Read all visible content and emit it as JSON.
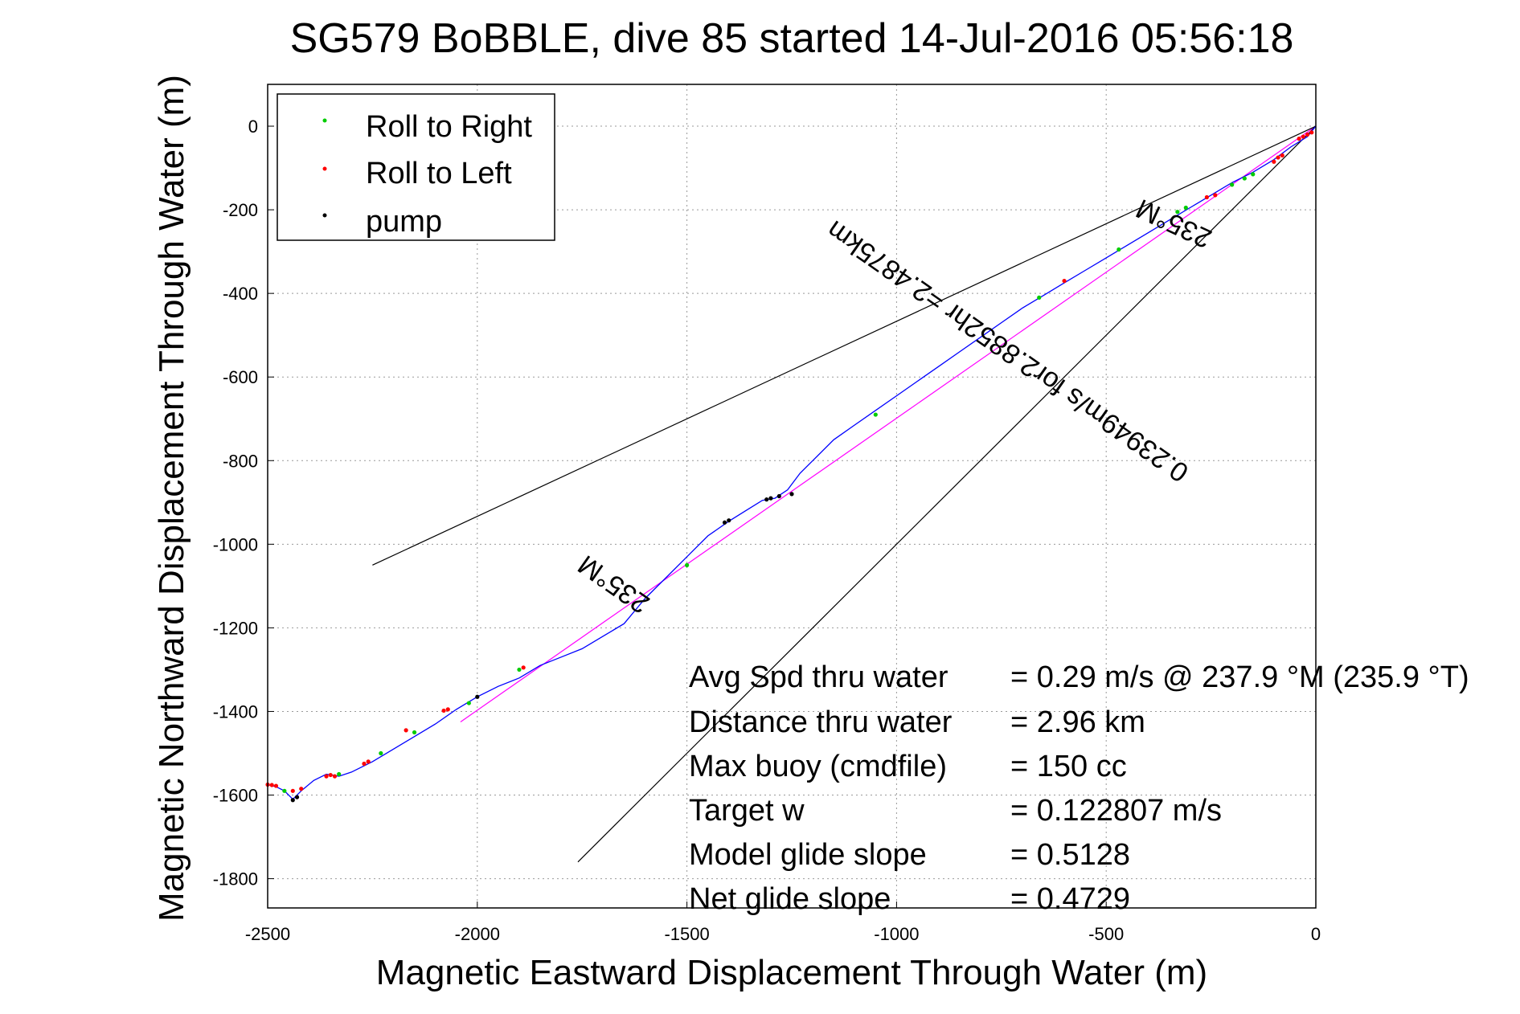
{
  "chart_data": {
    "type": "line",
    "title": "SG579 BoBBLE, dive 85 started 14-Jul-2016 05:56:18",
    "xlabel": "Magnetic Eastward Displacement Through Water (m)",
    "ylabel": "Magnetic Northward Displacement Through Water (m)",
    "xlim": [
      -2500,
      0
    ],
    "ylim": [
      -1870,
      100
    ],
    "xticks": [
      -2500,
      -2000,
      -1500,
      -1000,
      -500,
      0
    ],
    "yticks": [
      0,
      -200,
      -400,
      -600,
      -800,
      -1000,
      -1200,
      -1400,
      -1600,
      -1800
    ],
    "xtick_labels": [
      "-2500",
      "-2000",
      "-1500",
      "-1000",
      "-500",
      "0"
    ],
    "ytick_labels": [
      "0",
      "-200",
      "-400",
      "-600",
      "-800",
      "-1000",
      "-1200",
      "-1400",
      "-1600",
      "-1800"
    ],
    "grid": true,
    "legend": {
      "placement": "top-left",
      "entries": [
        {
          "label": "Roll to Right",
          "color": "#00cc00"
        },
        {
          "label": "Roll to Left",
          "color": "#ff0000"
        },
        {
          "label": "pump",
          "color": "#000000"
        }
      ]
    },
    "series": [
      {
        "color": "#0000ff",
        "x": [
          0,
          -20,
          -60,
          -100,
          -150,
          -200,
          -250,
          -300,
          -350,
          -400,
          -450,
          -500,
          -550,
          -600,
          -650,
          -700,
          -750,
          -800,
          -850,
          -900,
          -950,
          -1000,
          -1050,
          -1100,
          -1150,
          -1200,
          -1230,
          -1260,
          -1290,
          -1320,
          -1360,
          -1400,
          -1450,
          -1500,
          -1550,
          -1600,
          -1650,
          -1700,
          -1750,
          -1800,
          -1850,
          -1900,
          -1950,
          -2000,
          -2050,
          -2100,
          -2150,
          -2200,
          -2250,
          -2300,
          -2330,
          -2360,
          -2390,
          -2420,
          -2440,
          -2460,
          -2480,
          -2500
        ],
        "y": [
          0,
          -25,
          -50,
          -80,
          -110,
          -135,
          -165,
          -195,
          -225,
          -255,
          -285,
          -315,
          -345,
          -375,
          -405,
          -435,
          -470,
          -505,
          -540,
          -575,
          -610,
          -645,
          -680,
          -715,
          -750,
          -800,
          -830,
          -870,
          -890,
          -895,
          -920,
          -945,
          -980,
          -1030,
          -1080,
          -1130,
          -1190,
          -1220,
          -1250,
          -1270,
          -1290,
          -1320,
          -1340,
          -1365,
          -1395,
          -1430,
          -1460,
          -1490,
          -1520,
          -1545,
          -1555,
          -1550,
          -1565,
          -1590,
          -1610,
          -1590,
          -1580,
          -1575
        ]
      }
    ],
    "pump_points": {
      "x": [
        -1250,
        -1280,
        -1300,
        -1310,
        -1400,
        -1410,
        -2000,
        -2430,
        -2440
      ],
      "y": [
        -880,
        -885,
        -890,
        -893,
        -943,
        -948,
        -1365,
        -1605,
        -1612
      ]
    },
    "roll_right_points": {
      "x": [
        -150,
        -170,
        -200,
        -310,
        -330,
        -470,
        -660,
        -1050,
        -1500,
        -1900,
        -2020,
        -2150,
        -2230,
        -2330,
        -2460
      ],
      "y": [
        -115,
        -125,
        -140,
        -195,
        -205,
        -295,
        -410,
        -690,
        -1050,
        -1300,
        -1380,
        -1450,
        -1500,
        -1550,
        -1590
      ]
    },
    "roll_left_points": {
      "x": [
        -10,
        -20,
        -30,
        -40,
        -80,
        -90,
        -100,
        -240,
        -260,
        -600,
        -1890,
        -2070,
        -2080,
        -2170,
        -2260,
        -2270,
        -2340,
        -2350,
        -2360,
        -2420,
        -2440,
        -2480,
        -2490,
        -2500
      ],
      "y": [
        -15,
        -20,
        -25,
        -30,
        -70,
        -75,
        -85,
        -165,
        -170,
        -370,
        -1295,
        -1395,
        -1398,
        -1445,
        -1520,
        -1525,
        -1555,
        -1552,
        -1555,
        -1585,
        -1590,
        -1578,
        -1576,
        -1575
      ]
    },
    "reference_lines": [
      {
        "color": "#ff00ff",
        "x": [
          0,
          -2040
        ],
        "y": [
          0,
          -1425
        ]
      },
      {
        "color": "#000000",
        "x": [
          0,
          -2250
        ],
        "y": [
          0,
          -1050
        ]
      },
      {
        "color": "#000000",
        "x": [
          0,
          -1760
        ],
        "y": [
          0,
          -1760
        ]
      }
    ],
    "annotations": {
      "upper_heading": "235°M",
      "mid_heading": "235°M",
      "distance_line": "0.23949m/s for2.8852hr =2.4875km"
    },
    "summary": [
      {
        "label": "Avg Spd thru water",
        "value": "=  0.29 m/s @ 237.9 °M (235.9 °T)"
      },
      {
        "label": "Distance thru water",
        "value": "=  2.96 km"
      },
      {
        "label": "Max buoy (cmdfile)",
        "value": "= 150 cc"
      },
      {
        "label": "Target w",
        "value": "= 0.122807 m/s"
      },
      {
        "label": "Model glide slope",
        "value": "= 0.5128"
      },
      {
        "label": "Net glide slope",
        "value": "= 0.4729"
      }
    ]
  }
}
